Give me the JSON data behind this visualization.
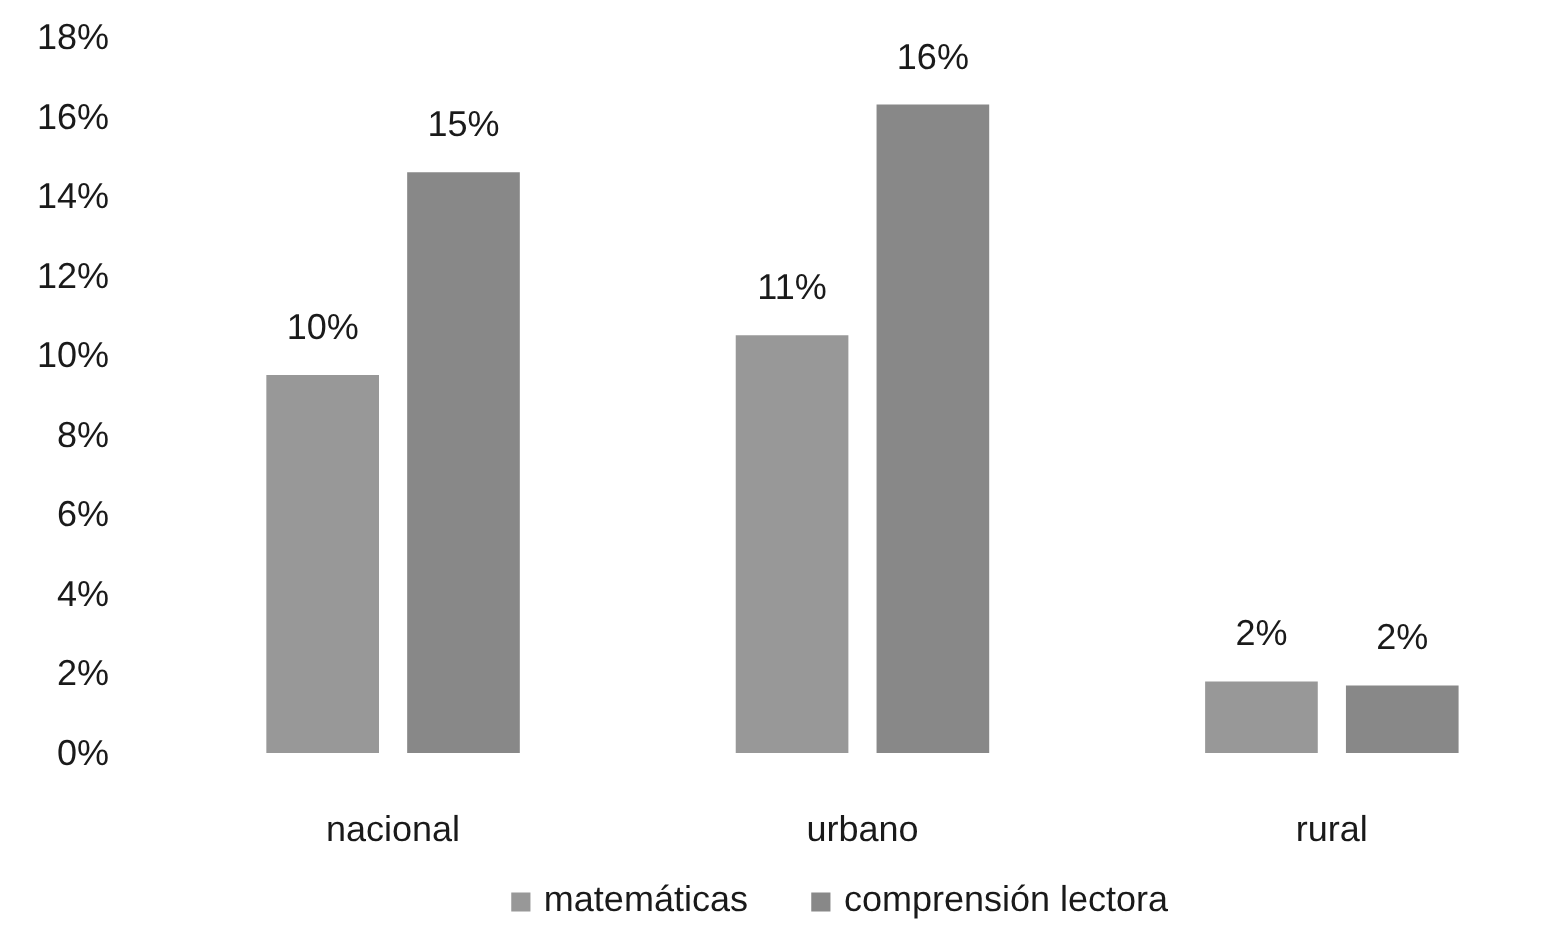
{
  "chart_data": {
    "type": "bar",
    "categories": [
      "nacional",
      "urbano",
      "rural"
    ],
    "series": [
      {
        "name": "matemáticas",
        "color": "#989898",
        "values": [
          9.5,
          10.5,
          1.8
        ],
        "value_labels": [
          "10%",
          "11%",
          "2%"
        ]
      },
      {
        "name": "comprensión lectora",
        "color": "#888888",
        "values": [
          14.6,
          16.3,
          1.7
        ],
        "value_labels": [
          "15%",
          "16%",
          "2%"
        ]
      }
    ],
    "ylim": [
      0,
      18
    ],
    "yticks": [
      {
        "value": 0,
        "label": "0%"
      },
      {
        "value": 2,
        "label": "2%"
      },
      {
        "value": 4,
        "label": "4%"
      },
      {
        "value": 6,
        "label": "6%"
      },
      {
        "value": 8,
        "label": "8%"
      },
      {
        "value": 10,
        "label": "10%"
      },
      {
        "value": 12,
        "label": "12%"
      },
      {
        "value": 14,
        "label": "14%"
      },
      {
        "value": 16,
        "label": "16%"
      },
      {
        "value": 18,
        "label": "18%"
      }
    ],
    "grid": false,
    "legend": "bottom"
  }
}
